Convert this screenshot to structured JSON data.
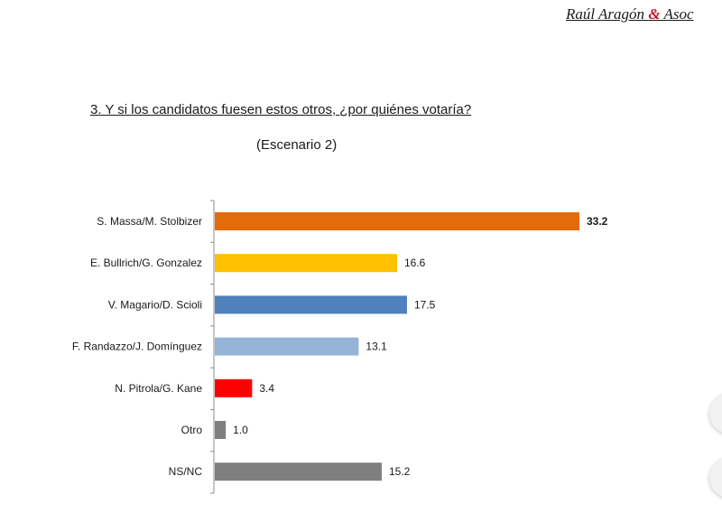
{
  "header": {
    "author_part1": "Raúl Aragón ",
    "author_amp": "&",
    "author_part2": " Asoc"
  },
  "chart_data": {
    "type": "bar",
    "orientation": "horizontal",
    "title": "3. Y si los candidatos fuesen estos otros, ¿por quiénes votaría?",
    "subtitle": "(Escenario 2)",
    "categories": [
      "S. Massa/M. Stolbizer",
      "E. Bullrich/G. Gonzalez",
      "V. Magario/D. Scioli",
      "F. Randazzo/J. Domínguez",
      "N. Pitrola/G. Kane",
      "Otro",
      "NS/NC"
    ],
    "values": [
      33.2,
      16.6,
      17.5,
      13.1,
      3.4,
      1.0,
      15.2
    ],
    "value_labels": [
      "33.2",
      "16.6",
      "17.5",
      "13.1",
      "3.4",
      "1.0",
      "15.2"
    ],
    "bold_labels": [
      true,
      false,
      false,
      false,
      false,
      false,
      false
    ],
    "colors": [
      "#e36c0a",
      "#ffc000",
      "#4f81bd",
      "#95b3d7",
      "#ff0000",
      "#7f7f7f",
      "#7f7f7f"
    ],
    "xlim": [
      0,
      33.2
    ],
    "grid": false,
    "legend": "none"
  }
}
